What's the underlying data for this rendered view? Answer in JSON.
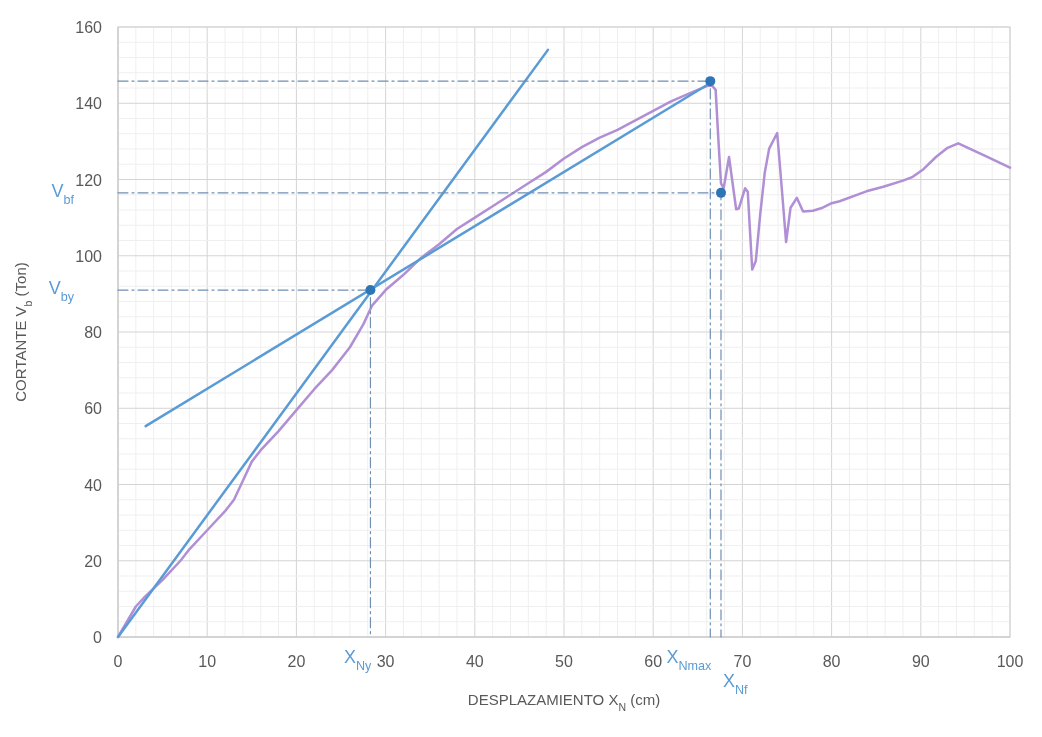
{
  "chart_data": {
    "type": "line",
    "xlabel": "DESPLAZAMIENTO X$_{N}$ (cm)",
    "ylabel": "CORTANTE V$_{b}$ (Ton)",
    "xlim": [
      0,
      100
    ],
    "ylim": [
      0,
      160
    ],
    "xticks": [
      0,
      {
        "value": 2,
        "label": null
      },
      {
        "value": 4,
        "label": null
      },
      {
        "value": 6,
        "label": null
      },
      {
        "value": 8,
        "label": null
      },
      10,
      {
        "value": 12,
        "label": null
      },
      {
        "value": 14,
        "label": null
      },
      {
        "value": 16,
        "label": null
      },
      {
        "value": 18,
        "label": null
      },
      20,
      {
        "value": 22,
        "label": null
      },
      {
        "value": 24,
        "label": null
      },
      {
        "value": 26,
        "label": null
      },
      {
        "value": 28,
        "label": null
      },
      30,
      {
        "value": 32,
        "label": null
      },
      {
        "value": 34,
        "label": null
      },
      {
        "value": 36,
        "label": null
      },
      {
        "value": 38,
        "label": null
      },
      40,
      {
        "value": 42,
        "label": null
      },
      {
        "value": 44,
        "label": null
      },
      {
        "value": 46,
        "label": null
      },
      {
        "value": 48,
        "label": null
      },
      50,
      {
        "value": 52,
        "label": null
      },
      {
        "value": 54,
        "label": null
      },
      {
        "value": 56,
        "label": null
      },
      {
        "value": 58,
        "label": null
      },
      60,
      {
        "value": 62,
        "label": null
      },
      {
        "value": 64,
        "label": null
      },
      {
        "value": 66,
        "label": null
      },
      {
        "value": 68,
        "label": null
      },
      70,
      {
        "value": 72,
        "label": null
      },
      {
        "value": 74,
        "label": null
      },
      {
        "value": 76,
        "label": null
      },
      {
        "value": 78,
        "label": null
      },
      80,
      {
        "value": 82,
        "label": null
      },
      {
        "value": 84,
        "label": null
      },
      {
        "value": 86,
        "label": null
      },
      {
        "value": 88,
        "label": null
      },
      90,
      {
        "value": 92,
        "label": null
      },
      {
        "value": 94,
        "label": null
      },
      {
        "value": 96,
        "label": null
      },
      {
        "value": 98,
        "label": null
      },
      100
    ],
    "yticks": [
      0,
      {
        "value": 4,
        "label": null
      },
      {
        "value": 8,
        "label": null
      },
      {
        "value": 12,
        "label": null
      },
      {
        "value": 16,
        "label": null
      },
      20,
      {
        "value": 24,
        "label": null
      },
      {
        "value": 28,
        "label": null
      },
      {
        "value": 32,
        "label": null
      },
      {
        "value": 36,
        "label": null
      },
      40,
      {
        "value": 44,
        "label": null
      },
      {
        "value": 48,
        "label": null
      },
      {
        "value": 52,
        "label": null
      },
      {
        "value": 56,
        "label": null
      },
      60,
      {
        "value": 64,
        "label": null
      },
      {
        "value": 68,
        "label": null
      },
      {
        "value": 72,
        "label": null
      },
      {
        "value": 76,
        "label": null
      },
      80,
      {
        "value": 84,
        "label": null
      },
      {
        "value": 88,
        "label": null
      },
      {
        "value": 92,
        "label": null
      },
      {
        "value": 96,
        "label": null
      },
      100,
      {
        "value": 104,
        "label": null
      },
      {
        "value": 108,
        "label": null
      },
      {
        "value": 112,
        "label": null
      },
      {
        "value": 116,
        "label": null
      },
      120,
      {
        "value": 124,
        "label": null
      },
      {
        "value": 128,
        "label": null
      },
      {
        "value": 132,
        "label": null
      },
      {
        "value": 136,
        "label": null
      },
      140,
      {
        "value": 144,
        "label": null
      },
      {
        "value": 148,
        "label": null
      },
      {
        "value": 152,
        "label": null
      },
      {
        "value": 156,
        "label": null
      },
      160
    ],
    "grid": true,
    "series": [
      {
        "color": "#b08fd4",
        "x": [
          0,
          1,
          2,
          3,
          5,
          7,
          8,
          10,
          12,
          13,
          14,
          15,
          16,
          18,
          20,
          22,
          24,
          26,
          27.5,
          28.5,
          30,
          32,
          34,
          36,
          38,
          40,
          42,
          44,
          46,
          48,
          50,
          52,
          54,
          56,
          58,
          60,
          62,
          64,
          66,
          66.5,
          67.0,
          67.3,
          67.6,
          67.9,
          68.5,
          69.3,
          69.6,
          70.3,
          70.6,
          71.1,
          71.5,
          72.0,
          72.5,
          73.0,
          73.9,
          74.4,
          74.9,
          75.4,
          76.1,
          76.8,
          77.9,
          79.0,
          79.9,
          80.9,
          83.9,
          85.8,
          88.0,
          89.1,
          90.3,
          91.7,
          93.0,
          94.2,
          97.1,
          100
        ],
        "values": [
          0,
          4,
          8,
          10.5,
          15,
          20,
          23,
          28,
          33,
          36,
          41,
          46,
          49,
          54,
          59.5,
          65,
          70,
          76,
          82,
          87,
          91,
          95,
          99.5,
          103,
          107,
          110,
          113,
          116,
          119,
          122,
          125.5,
          128.5,
          131,
          133,
          135.5,
          138,
          140.5,
          142.5,
          144.5,
          144.9,
          143.5,
          130.8,
          119,
          117.7,
          125.9,
          112.2,
          112.4,
          117.7,
          116.8,
          96.4,
          98.6,
          110.9,
          121.7,
          128.1,
          132.2,
          118.1,
          103.6,
          112.6,
          115.2,
          111.6,
          111.8,
          112.6,
          113.7,
          114.3,
          116.9,
          118.1,
          119.7,
          120.7,
          122.7,
          125.9,
          128.3,
          129.5,
          126.3,
          123.1
        ]
      },
      {
        "color": "#5b9bd5",
        "x": [
          0,
          48.2
        ],
        "values": [
          0,
          154
        ]
      },
      {
        "color": "#5b9bd5",
        "x": [
          3.1,
          66.4
        ],
        "values": [
          55.3,
          145.3
        ]
      },
      {
        "color": "#6f8fb3",
        "line_style": "dashed",
        "x": [
          0,
          28.3,
          28.3
        ],
        "values": [
          91,
          91,
          0
        ]
      },
      {
        "color": "#6f8fb3",
        "line_style": "dashed",
        "x": [
          0,
          66.4,
          66.4
        ],
        "values": [
          145.8,
          145.8,
          0
        ]
      },
      {
        "color": "#6f8fb3",
        "line_style": "dashed",
        "x": [
          0,
          67.6,
          67.6
        ],
        "values": [
          116.5,
          116.5,
          0
        ]
      },
      {
        "type": "scatter",
        "marker": "circle",
        "color": "#2e75b6",
        "x": [
          28.3,
          66.4,
          67.6
        ],
        "values": [
          91,
          145.8,
          116.5
        ]
      }
    ],
    "annotations": [
      {
        "text": "V$_{bf}$",
        "x": 0,
        "y": 116.5
      },
      {
        "text": "V$_{by}$",
        "x": 0,
        "y": 91
      },
      {
        "text": "X$_{Ny}$",
        "x": 28.3,
        "y": 0
      },
      {
        "text": "X$_{Nmax}$",
        "x": 66.4,
        "y": 0
      },
      {
        "text": "X$_{Nf}$",
        "x": 67.6,
        "y": 0
      }
    ]
  }
}
